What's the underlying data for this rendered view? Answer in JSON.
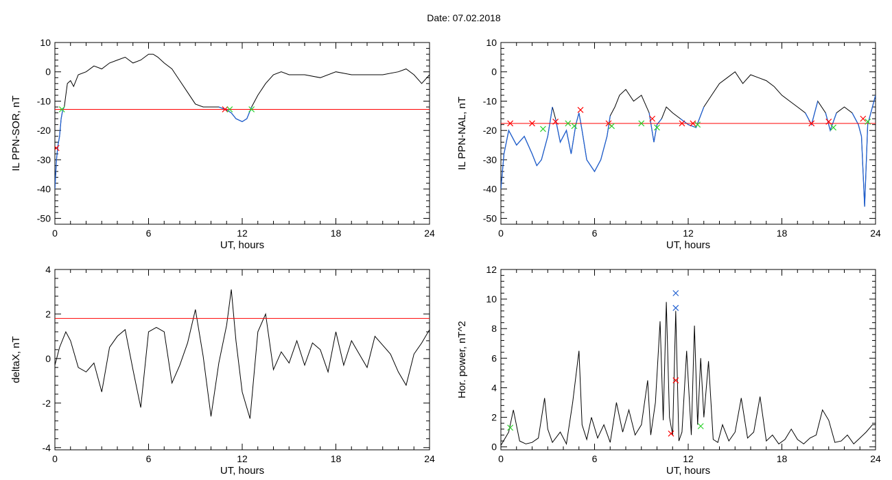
{
  "title": "Date:  07.02.2018",
  "colors": {
    "trace": "#000000",
    "threshold": "#ff0000",
    "below": "#1f5fd0",
    "mark_red": "#ff0000",
    "mark_green": "#2bd12b",
    "mark_blue": "#1f5fd0"
  },
  "chart_data": [
    {
      "id": "ppn_sor",
      "type": "line",
      "xlabel": "UT, hours",
      "ylabel": "IL PPN-SOR, nT",
      "xlim": [
        0,
        24
      ],
      "ylim": [
        -52,
        10
      ],
      "xticks": [
        0,
        6,
        12,
        18,
        24
      ],
      "yticks": [
        10,
        0,
        -10,
        -20,
        -30,
        -40,
        -50
      ],
      "threshold": -12.8,
      "x": [
        0,
        0.1,
        0.2,
        0.3,
        0.4,
        0.5,
        0.6,
        0.7,
        0.8,
        1.0,
        1.2,
        1.5,
        2.0,
        2.5,
        3.0,
        3.5,
        4.0,
        4.5,
        5.0,
        5.5,
        6.0,
        6.3,
        6.6,
        7.0,
        7.5,
        8.0,
        8.5,
        9.0,
        9.5,
        10.0,
        10.5,
        11.0,
        11.3,
        11.6,
        12.0,
        12.3,
        12.6,
        13.0,
        13.5,
        14.0,
        14.5,
        15.0,
        16.0,
        17.0,
        18.0,
        19.0,
        20.0,
        21.0,
        22.0,
        22.5,
        23.0,
        23.5,
        24.0
      ],
      "y": [
        -40,
        -30,
        -25,
        -22,
        -16,
        -13,
        -12,
        -8,
        -4,
        -3,
        -5,
        -1,
        0,
        2,
        1,
        3,
        4,
        5,
        3,
        4,
        6,
        6,
        5,
        3,
        1,
        -3,
        -7,
        -11,
        -12,
        -12,
        -12,
        -13,
        -14,
        -16,
        -17,
        -16,
        -12,
        -8,
        -4,
        -1,
        0,
        -1,
        -1,
        -2,
        0,
        -1,
        -1,
        -1,
        0,
        1,
        -1,
        -4,
        -1
      ],
      "cross_marks": [
        {
          "x": 0.1,
          "y": -26,
          "color": "mark_red"
        },
        {
          "x": 0.45,
          "y": -12.8,
          "color": "mark_green"
        },
        {
          "x": 10.9,
          "y": -12.8,
          "color": "mark_red"
        },
        {
          "x": 11.2,
          "y": -12.8,
          "color": "mark_green"
        },
        {
          "x": 12.6,
          "y": -12.8,
          "color": "mark_green"
        }
      ]
    },
    {
      "id": "ppn_nal",
      "type": "line",
      "xlabel": "UT, hours",
      "ylabel": "IL PPN-NAL, nT",
      "xlim": [
        0,
        24
      ],
      "ylim": [
        -52,
        10
      ],
      "xticks": [
        0,
        6,
        12,
        18,
        24
      ],
      "yticks": [
        10,
        0,
        -10,
        -20,
        -30,
        -40,
        -50
      ],
      "threshold": -17.6,
      "x": [
        0,
        0.2,
        0.5,
        1.0,
        1.5,
        2.0,
        2.3,
        2.6,
        3.0,
        3.3,
        3.5,
        3.8,
        4.2,
        4.5,
        4.8,
        5.0,
        5.2,
        5.5,
        6.0,
        6.4,
        6.8,
        7.0,
        7.3,
        7.6,
        8.0,
        8.5,
        9.0,
        9.5,
        9.8,
        10.0,
        10.3,
        10.6,
        11.0,
        11.5,
        12.0,
        12.5,
        13.0,
        13.5,
        14.0,
        14.5,
        15.0,
        15.5,
        16.0,
        16.5,
        17.0,
        17.5,
        18.0,
        18.5,
        19.0,
        19.5,
        19.9,
        20.3,
        20.8,
        21.1,
        21.5,
        22.0,
        22.5,
        22.9,
        23.1,
        23.3,
        23.5,
        24.0
      ],
      "y": [
        -40,
        -28,
        -20,
        -25,
        -22,
        -28,
        -32,
        -30,
        -22,
        -12,
        -16,
        -24,
        -20,
        -28,
        -18,
        -14,
        -20,
        -30,
        -34,
        -30,
        -22,
        -15,
        -12,
        -8,
        -6,
        -10,
        -8,
        -14,
        -24,
        -18,
        -16,
        -12,
        -14,
        -16,
        -18,
        -19,
        -12,
        -8,
        -4,
        -2,
        0,
        -4,
        -1,
        -2,
        -3,
        -5,
        -8,
        -10,
        -12,
        -14,
        -18,
        -10,
        -14,
        -20,
        -14,
        -12,
        -14,
        -18,
        -22,
        -46,
        -18,
        -8
      ],
      "cross_marks": [
        {
          "x": 0.6,
          "y": -17.6,
          "color": "mark_red"
        },
        {
          "x": 2.0,
          "y": -17.6,
          "color": "mark_red"
        },
        {
          "x": 2.7,
          "y": -19.5,
          "color": "mark_green"
        },
        {
          "x": 3.5,
          "y": -17.0,
          "color": "mark_red"
        },
        {
          "x": 4.3,
          "y": -17.6,
          "color": "mark_green"
        },
        {
          "x": 4.7,
          "y": -18.5,
          "color": "mark_green"
        },
        {
          "x": 5.1,
          "y": -13.0,
          "color": "mark_red"
        },
        {
          "x": 6.9,
          "y": -17.6,
          "color": "mark_red"
        },
        {
          "x": 7.1,
          "y": -18.5,
          "color": "mark_green"
        },
        {
          "x": 9.0,
          "y": -17.6,
          "color": "mark_green"
        },
        {
          "x": 9.7,
          "y": -16.0,
          "color": "mark_red"
        },
        {
          "x": 10.0,
          "y": -19.0,
          "color": "mark_green"
        },
        {
          "x": 11.6,
          "y": -17.6,
          "color": "mark_red"
        },
        {
          "x": 12.3,
          "y": -17.6,
          "color": "mark_red"
        },
        {
          "x": 12.6,
          "y": -18.0,
          "color": "mark_green"
        },
        {
          "x": 19.9,
          "y": -17.6,
          "color": "mark_red"
        },
        {
          "x": 21.0,
          "y": -17.0,
          "color": "mark_red"
        },
        {
          "x": 21.3,
          "y": -19.0,
          "color": "mark_green"
        },
        {
          "x": 23.2,
          "y": -16.0,
          "color": "mark_red"
        },
        {
          "x": 23.5,
          "y": -17.0,
          "color": "mark_green"
        }
      ]
    },
    {
      "id": "deltax",
      "type": "line",
      "xlabel": "UT, hours",
      "ylabel": "deltaX, nT",
      "xlim": [
        0,
        24
      ],
      "ylim": [
        -4.1,
        4
      ],
      "xticks": [
        0,
        6,
        12,
        18,
        24
      ],
      "yticks": [
        4,
        2,
        0,
        -2,
        -4
      ],
      "threshold": 1.8,
      "x": [
        0,
        0.3,
        0.7,
        1.0,
        1.5,
        2.0,
        2.5,
        3.0,
        3.5,
        4.0,
        4.5,
        5.0,
        5.5,
        6.0,
        6.5,
        7.0,
        7.5,
        8.0,
        8.5,
        9.0,
        9.5,
        10.0,
        10.5,
        11.0,
        11.3,
        11.6,
        12.0,
        12.5,
        13.0,
        13.5,
        14.0,
        14.5,
        15.0,
        15.5,
        16.0,
        16.5,
        17.0,
        17.5,
        18.0,
        18.5,
        19.0,
        19.5,
        20.0,
        20.5,
        21.0,
        21.5,
        22.0,
        22.5,
        23.0,
        23.5,
        24.0
      ],
      "y": [
        -0.3,
        0.5,
        1.2,
        0.8,
        -0.4,
        -0.6,
        -0.2,
        -1.5,
        0.5,
        1.0,
        1.3,
        -0.5,
        -2.2,
        1.2,
        1.4,
        1.2,
        -1.1,
        -0.3,
        0.7,
        2.2,
        0.1,
        -2.6,
        -0.2,
        1.5,
        3.1,
        0.8,
        -1.5,
        -2.7,
        1.2,
        2.0,
        -0.5,
        0.3,
        -0.2,
        0.8,
        -0.3,
        0.7,
        0.4,
        -0.6,
        1.2,
        -0.3,
        0.8,
        0.2,
        -0.4,
        1.0,
        0.6,
        0.2,
        -0.6,
        -1.2,
        0.2,
        0.7,
        1.3
      ]
    },
    {
      "id": "hor_power",
      "type": "line",
      "xlabel": "UT, hours",
      "ylabel": "Hor. power, nT^2",
      "xlim": [
        0,
        24
      ],
      "ylim": [
        -0.2,
        12
      ],
      "xticks": [
        0,
        6,
        12,
        18,
        24
      ],
      "yticks": [
        12,
        10,
        8,
        6,
        4,
        2,
        0
      ],
      "x": [
        0,
        0.5,
        0.8,
        1.2,
        1.6,
        2.0,
        2.4,
        2.8,
        3.0,
        3.3,
        3.8,
        4.2,
        4.6,
        5.0,
        5.2,
        5.5,
        5.8,
        6.2,
        6.6,
        7.0,
        7.4,
        7.8,
        8.2,
        8.6,
        9.0,
        9.4,
        9.6,
        9.9,
        10.2,
        10.4,
        10.6,
        10.8,
        11.0,
        11.2,
        11.4,
        11.6,
        11.9,
        12.2,
        12.4,
        12.6,
        12.8,
        13.0,
        13.3,
        13.6,
        13.9,
        14.2,
        14.6,
        15.0,
        15.4,
        15.8,
        16.2,
        16.6,
        17.0,
        17.4,
        17.8,
        18.2,
        18.6,
        19.0,
        19.4,
        19.8,
        20.2,
        20.6,
        21.0,
        21.4,
        21.8,
        22.2,
        22.6,
        23.0,
        23.4,
        23.8,
        24.0
      ],
      "y": [
        0.1,
        1.0,
        2.5,
        0.4,
        0.2,
        0.3,
        0.6,
        3.3,
        1.2,
        0.3,
        1.0,
        0.2,
        3.0,
        6.5,
        1.5,
        0.5,
        2.0,
        0.6,
        1.5,
        0.3,
        3.0,
        1.0,
        2.5,
        0.8,
        1.5,
        4.5,
        0.8,
        3.0,
        8.5,
        1.8,
        9.8,
        2.0,
        0.8,
        9.2,
        0.4,
        1.0,
        6.5,
        0.8,
        8.2,
        1.5,
        6.0,
        2.0,
        5.8,
        0.5,
        0.3,
        1.5,
        0.4,
        1.0,
        3.3,
        0.6,
        1.0,
        3.4,
        0.4,
        0.8,
        0.2,
        0.5,
        1.2,
        0.5,
        0.2,
        0.6,
        0.8,
        2.5,
        1.8,
        0.3,
        0.4,
        0.8,
        0.2,
        0.6,
        1.0,
        1.5,
        1.5
      ],
      "cross_marks": [
        {
          "x": 0.6,
          "y": 1.3,
          "color": "mark_green"
        },
        {
          "x": 10.9,
          "y": 0.9,
          "color": "mark_red"
        },
        {
          "x": 11.2,
          "y": 4.5,
          "color": "mark_red"
        },
        {
          "x": 11.2,
          "y": 9.4,
          "color": "mark_blue"
        },
        {
          "x": 11.2,
          "y": 10.4,
          "color": "mark_blue"
        },
        {
          "x": 12.8,
          "y": 1.4,
          "color": "mark_green"
        }
      ]
    }
  ]
}
